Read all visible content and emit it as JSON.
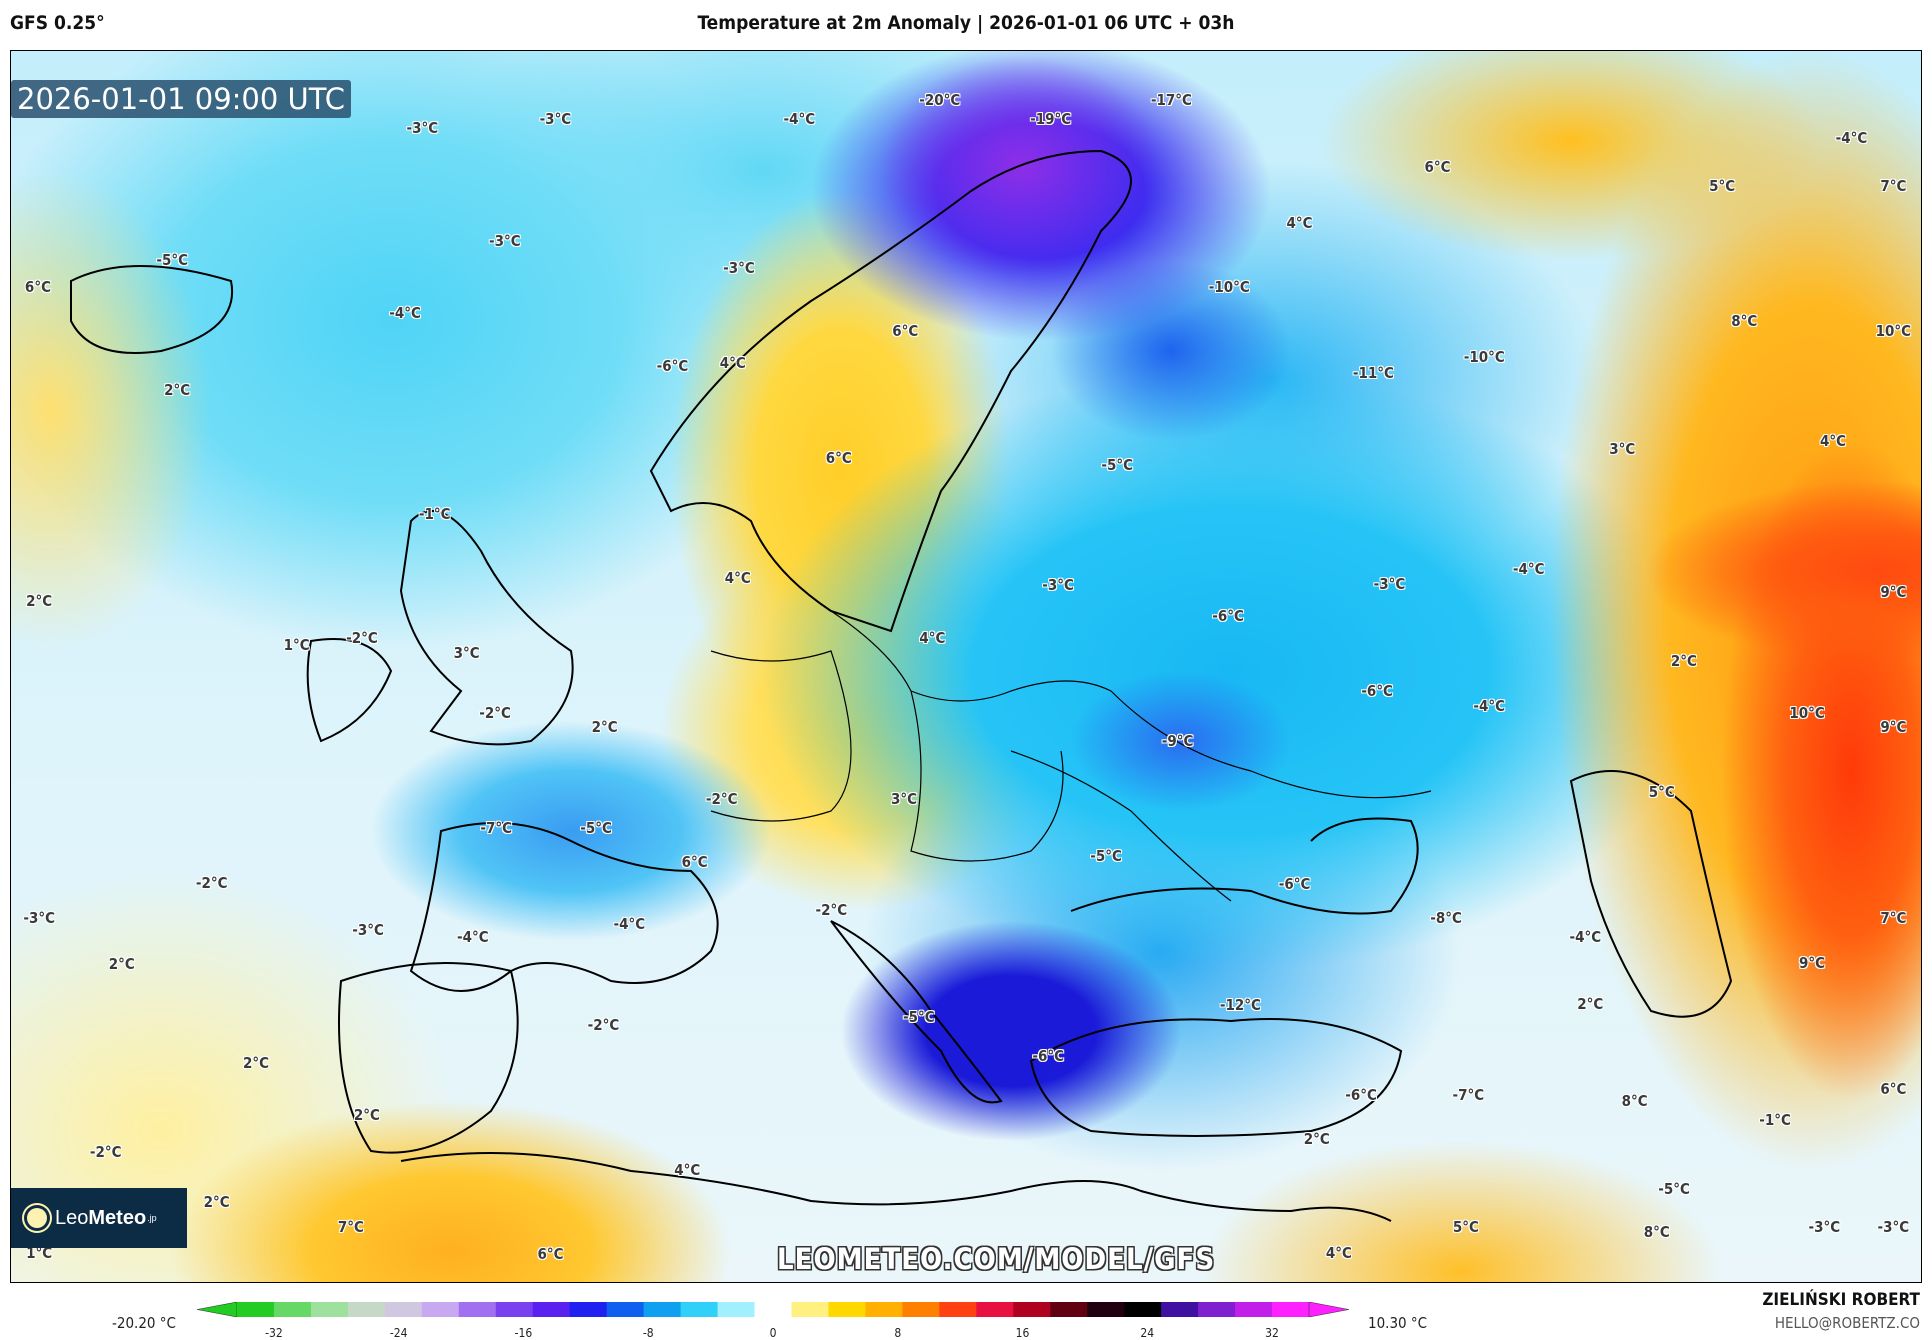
{
  "header": {
    "model": "GFS 0.25°",
    "title": "Temperature at 2m Anomaly | 2026-01-01 06 UTC + 03h"
  },
  "map": {
    "valid_time": "2026-01-01 09:00 UTC",
    "watermark": "LEOMETEO.COM/MODEL/GFS",
    "logo": {
      "name_light": "Leo",
      "name_bold": "Meteo",
      "suffix": ".jp"
    },
    "labels": [
      "-3°C",
      "-3°C",
      "-4°C",
      "-20°C",
      "-19°C",
      "-17°C",
      "-4°C",
      "6°C",
      "5°C",
      "7°C",
      "-5°C",
      "6°C",
      "-3°C",
      "-3°C",
      "4°C",
      "-10°C",
      "-4°C",
      "6°C",
      "8°C",
      "10°C",
      "-6°C",
      "4°C",
      "-11°C",
      "-10°C",
      "2°C",
      "6°C",
      "-5°C",
      "3°C",
      "4°C",
      "-1°C",
      "-4°C",
      "-3°C",
      "-3°C",
      "4°C",
      "2°C",
      "-6°C",
      "9°C",
      "1°C",
      "-2°C",
      "3°C",
      "4°C",
      "2°C",
      "-6°C",
      "-4°C",
      "-2°C",
      "2°C",
      "-9°C",
      "10°C",
      "9°C",
      "-2°C",
      "3°C",
      "5°C",
      "-7°C",
      "-5°C",
      "6°C",
      "-5°C",
      "-6°C",
      "-2°C",
      "-3°C",
      "-4°C",
      "-2°C",
      "-8°C",
      "7°C",
      "-3°C",
      "-4°C",
      "-4°C",
      "2°C",
      "9°C",
      "-12°C",
      "2°C",
      "-2°C",
      "-5°C",
      "-6°C",
      "2°C",
      "-6°C",
      "-7°C",
      "8°C",
      "6°C",
      "2°C",
      "-1°C",
      "-2°C",
      "2°C",
      "4°C",
      "-5°C",
      "2°C",
      "7°C",
      "8°C",
      "5°C",
      "-3°C",
      "-3°C",
      "1°C",
      "6°C",
      "4°C"
    ]
  },
  "colorbar": {
    "min_label": "-20.20 °C",
    "max_label": "10.30 °C",
    "ticks": [
      "-32",
      "-24",
      "-16",
      "-8",
      "0",
      "8",
      "16",
      "24",
      "32"
    ],
    "range": [
      -32,
      32
    ],
    "colors": [
      "#22cc22",
      "#66d866",
      "#9ee09e",
      "#c6d8c6",
      "#d0c8e0",
      "#c8a8f0",
      "#a070f0",
      "#7a40f0",
      "#5a20f0",
      "#2020f0",
      "#1060f0",
      "#10a0f0",
      "#30d0f8",
      "#a0f0ff",
      "#ffffff",
      "#fff080",
      "#ffd800",
      "#ffb000",
      "#ff8000",
      "#ff4010",
      "#e81040",
      "#b00020",
      "#600010",
      "#200010",
      "#000000",
      "#4010a0",
      "#8020d0",
      "#c020e8",
      "#ff20ff"
    ]
  },
  "footer": {
    "author": "ZIELIŃSKI ROBERT",
    "email": "HELLO@ROBERTZ.CO"
  }
}
